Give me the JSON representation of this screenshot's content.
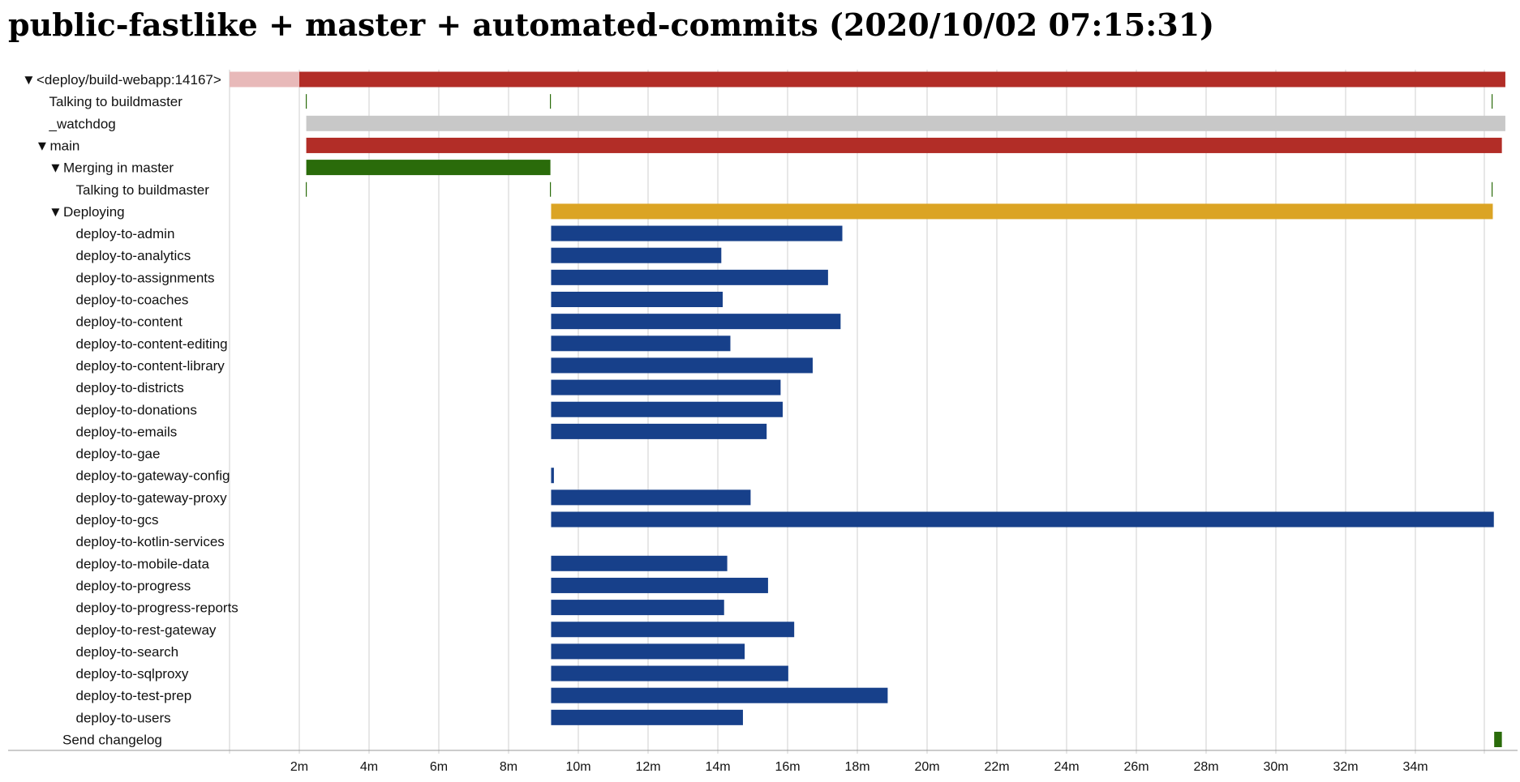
{
  "chart_data": {
    "type": "gantt",
    "title": "public-fastlike + master + automated-commits (2020/10/02 07:15:31)",
    "x_unit": "minutes",
    "x_ticks": [
      "2m",
      "4m",
      "6m",
      "8m",
      "10m",
      "12m",
      "14m",
      "16m",
      "18m",
      "20m",
      "22m",
      "24m",
      "26m",
      "28m",
      "30m",
      "32m",
      "34m"
    ],
    "xlim": [
      0,
      36.58
    ],
    "colors": {
      "red": "#b22d27",
      "red_light": "#e8b9b9",
      "gray": "#c8c8c8",
      "green": "#2a6b0a",
      "gold": "#dba424",
      "blue": "#17408a"
    },
    "rows": [
      {
        "label": "<deploy/build-webapp:14167>",
        "indent": 0,
        "toggle": true,
        "bars": [
          {
            "start": 0,
            "end": 2.0,
            "color": "red_light"
          },
          {
            "start": 2.0,
            "end": 36.58,
            "color": "red"
          }
        ]
      },
      {
        "label": "Talking to buildmaster",
        "indent": 1,
        "toggle": false,
        "bars": [],
        "markers": [
          2.2,
          9.2,
          36.2
        ]
      },
      {
        "label": "_watchdog",
        "indent": 1,
        "toggle": false,
        "bars": [
          {
            "start": 2.2,
            "end": 36.58,
            "color": "gray"
          }
        ]
      },
      {
        "label": "main",
        "indent": 1,
        "toggle": true,
        "bars": [
          {
            "start": 2.2,
            "end": 36.48,
            "color": "red"
          }
        ]
      },
      {
        "label": "Merging in master",
        "indent": 2,
        "toggle": true,
        "bars": [
          {
            "start": 2.2,
            "end": 9.2,
            "color": "green"
          }
        ]
      },
      {
        "label": "Talking to buildmaster",
        "indent": 3,
        "toggle": false,
        "bars": [],
        "markers": [
          2.2,
          9.2,
          36.2
        ]
      },
      {
        "label": "Deploying",
        "indent": 2,
        "toggle": true,
        "bars": [
          {
            "start": 9.22,
            "end": 36.22,
            "color": "gold"
          }
        ]
      },
      {
        "label": "deploy-to-admin",
        "indent": 3,
        "toggle": false,
        "bars": [
          {
            "start": 9.22,
            "end": 17.57,
            "color": "blue"
          }
        ]
      },
      {
        "label": "deploy-to-analytics",
        "indent": 3,
        "toggle": false,
        "bars": [
          {
            "start": 9.22,
            "end": 14.1,
            "color": "blue"
          }
        ]
      },
      {
        "label": "deploy-to-assignments",
        "indent": 3,
        "toggle": false,
        "bars": [
          {
            "start": 9.22,
            "end": 17.16,
            "color": "blue"
          }
        ]
      },
      {
        "label": "deploy-to-coaches",
        "indent": 3,
        "toggle": false,
        "bars": [
          {
            "start": 9.22,
            "end": 14.14,
            "color": "blue"
          }
        ]
      },
      {
        "label": "deploy-to-content",
        "indent": 3,
        "toggle": false,
        "bars": [
          {
            "start": 9.22,
            "end": 17.52,
            "color": "blue"
          }
        ]
      },
      {
        "label": "deploy-to-content-editing",
        "indent": 3,
        "toggle": false,
        "bars": [
          {
            "start": 9.22,
            "end": 14.36,
            "color": "blue"
          }
        ]
      },
      {
        "label": "deploy-to-content-library",
        "indent": 3,
        "toggle": false,
        "bars": [
          {
            "start": 9.22,
            "end": 16.72,
            "color": "blue"
          }
        ]
      },
      {
        "label": "deploy-to-districts",
        "indent": 3,
        "toggle": false,
        "bars": [
          {
            "start": 9.22,
            "end": 15.8,
            "color": "blue"
          }
        ]
      },
      {
        "label": "deploy-to-donations",
        "indent": 3,
        "toggle": false,
        "bars": [
          {
            "start": 9.22,
            "end": 15.86,
            "color": "blue"
          }
        ]
      },
      {
        "label": "deploy-to-emails",
        "indent": 3,
        "toggle": false,
        "bars": [
          {
            "start": 9.22,
            "end": 15.4,
            "color": "blue"
          }
        ]
      },
      {
        "label": "deploy-to-gae",
        "indent": 3,
        "toggle": false,
        "bars": []
      },
      {
        "label": "deploy-to-gateway-config",
        "indent": 3,
        "toggle": false,
        "bars": [
          {
            "start": 9.22,
            "end": 9.3,
            "color": "blue"
          }
        ]
      },
      {
        "label": "deploy-to-gateway-proxy",
        "indent": 3,
        "toggle": false,
        "bars": [
          {
            "start": 9.22,
            "end": 14.94,
            "color": "blue"
          }
        ]
      },
      {
        "label": "deploy-to-gcs",
        "indent": 3,
        "toggle": false,
        "bars": [
          {
            "start": 9.22,
            "end": 36.25,
            "color": "blue"
          }
        ]
      },
      {
        "label": "deploy-to-kotlin-services",
        "indent": 3,
        "toggle": false,
        "bars": []
      },
      {
        "label": "deploy-to-mobile-data",
        "indent": 3,
        "toggle": false,
        "bars": [
          {
            "start": 9.22,
            "end": 14.27,
            "color": "blue"
          }
        ]
      },
      {
        "label": "deploy-to-progress",
        "indent": 3,
        "toggle": false,
        "bars": [
          {
            "start": 9.22,
            "end": 15.44,
            "color": "blue"
          }
        ]
      },
      {
        "label": "deploy-to-progress-reports",
        "indent": 3,
        "toggle": false,
        "bars": [
          {
            "start": 9.22,
            "end": 14.18,
            "color": "blue"
          }
        ]
      },
      {
        "label": "deploy-to-rest-gateway",
        "indent": 3,
        "toggle": false,
        "bars": [
          {
            "start": 9.22,
            "end": 16.19,
            "color": "blue"
          }
        ]
      },
      {
        "label": "deploy-to-search",
        "indent": 3,
        "toggle": false,
        "bars": [
          {
            "start": 9.22,
            "end": 14.77,
            "color": "blue"
          }
        ]
      },
      {
        "label": "deploy-to-sqlproxy",
        "indent": 3,
        "toggle": false,
        "bars": [
          {
            "start": 9.22,
            "end": 16.02,
            "color": "blue"
          }
        ]
      },
      {
        "label": "deploy-to-test-prep",
        "indent": 3,
        "toggle": false,
        "bars": [
          {
            "start": 9.22,
            "end": 18.87,
            "color": "blue"
          }
        ]
      },
      {
        "label": "deploy-to-users",
        "indent": 3,
        "toggle": false,
        "bars": [
          {
            "start": 9.22,
            "end": 14.72,
            "color": "blue"
          }
        ]
      },
      {
        "label": "Send changelog",
        "indent": 2,
        "toggle": false,
        "bars": [
          {
            "start": 36.26,
            "end": 36.48,
            "color": "green"
          }
        ]
      }
    ]
  }
}
